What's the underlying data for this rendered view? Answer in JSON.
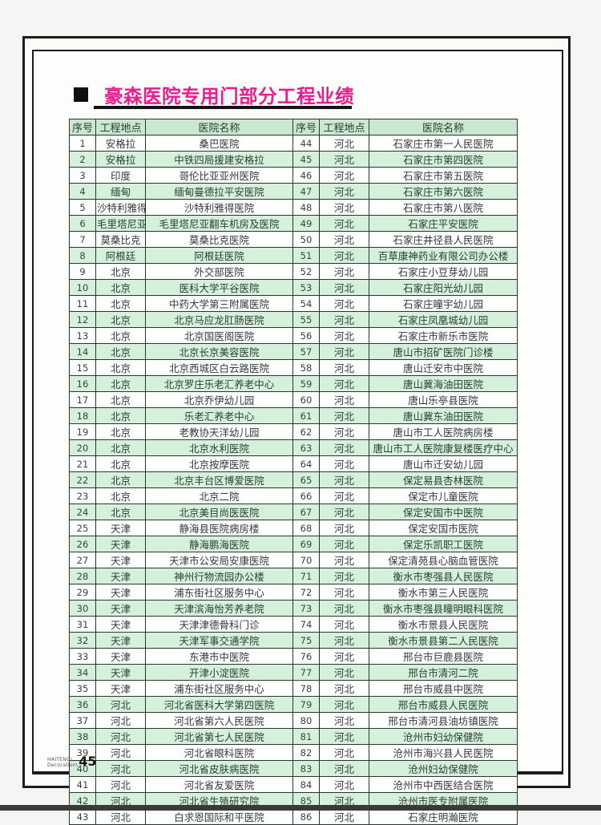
{
  "title": "豪森医院专用门部分工程业绩",
  "footer": {
    "brand_line1": "HAITENG\\",
    "brand_line2": "Decoration\\",
    "page_number": "45"
  },
  "colors": {
    "title_magenta": "#e81e8e",
    "header_green": "#c8e8cf",
    "row_green": "#d5f1dc",
    "row_white": "#fdfffd",
    "frame_black": "#1c1c1c"
  },
  "table": {
    "headers": [
      "序号",
      "工程地点",
      "医院名称",
      "序号",
      "工程地点",
      "医院名称"
    ],
    "left_rows": [
      [
        "1",
        "安格拉",
        "桑巴医院"
      ],
      [
        "2",
        "安格拉",
        "中铁四局援建安格拉"
      ],
      [
        "3",
        "印度",
        "哥伦比亚亚州医院"
      ],
      [
        "4",
        "缅甸",
        "缅甸曼德拉平安医院"
      ],
      [
        "5",
        "沙特利雅得",
        "沙特利雅得医院"
      ],
      [
        "6",
        "毛里塔尼亚",
        "毛里塔尼亚翻车机房及医院"
      ],
      [
        "7",
        "莫桑比克",
        "莫桑比克医院"
      ],
      [
        "8",
        "阿根廷",
        "阿根廷医院"
      ],
      [
        "9",
        "北京",
        "外交部医院"
      ],
      [
        "10",
        "北京",
        "医科大学平谷医院"
      ],
      [
        "11",
        "北京",
        "中药大学第三附属医院"
      ],
      [
        "12",
        "北京",
        "北京马应龙肛肠医院"
      ],
      [
        "13",
        "北京",
        "北京国医阁医院"
      ],
      [
        "14",
        "北京",
        "北京长京美容医院"
      ],
      [
        "15",
        "北京",
        "北京西城区白云路医院"
      ],
      [
        "16",
        "北京",
        "北京罗庄乐老汇养老中心"
      ],
      [
        "17",
        "北京",
        "北京乔伊幼儿园"
      ],
      [
        "18",
        "北京",
        "乐老汇养老中心"
      ],
      [
        "19",
        "北京",
        "老教协天洋幼儿园"
      ],
      [
        "20",
        "北京",
        "北京水利医院"
      ],
      [
        "21",
        "北京",
        "北京按摩医院"
      ],
      [
        "22",
        "北京",
        "北京丰台区博爱医院"
      ],
      [
        "23",
        "北京",
        "北京二院"
      ],
      [
        "24",
        "北京",
        "北京美目尚医医院"
      ],
      [
        "25",
        "天津",
        "静海县医院病房楼"
      ],
      [
        "26",
        "天津",
        "静海鹏海医院"
      ],
      [
        "27",
        "天津",
        "天津市公安局安康医院"
      ],
      [
        "28",
        "天津",
        "神州行物流园办公楼"
      ],
      [
        "29",
        "天津",
        "浦东街社区服务中心"
      ],
      [
        "30",
        "天津",
        "天津滨海怡芳养老院"
      ],
      [
        "31",
        "天津",
        "天津津德骨科门诊"
      ],
      [
        "32",
        "天津",
        "天津军事交通学院"
      ],
      [
        "33",
        "天津",
        "东港市中医院"
      ],
      [
        "34",
        "天津",
        "开津小淀医院"
      ],
      [
        "35",
        "天津",
        "浦东街社区服务中心"
      ],
      [
        "36",
        "河北",
        "河北省医科大学第四医院"
      ],
      [
        "37",
        "河北",
        "河北省第六人民医院"
      ],
      [
        "38",
        "河北",
        "河北省第七人民医院"
      ],
      [
        "39",
        "河北",
        "河北省眼科医院"
      ],
      [
        "40",
        "河北",
        "河北省皮肤病医院"
      ],
      [
        "41",
        "河北",
        "河北省友爱医院"
      ],
      [
        "42",
        "河北",
        "河北省生殖研究院"
      ],
      [
        "43",
        "河北",
        "白求恩国际和平医院"
      ]
    ],
    "right_rows": [
      [
        "44",
        "河北",
        "石家庄市第一人民医院"
      ],
      [
        "45",
        "河北",
        "石家庄市第四医院"
      ],
      [
        "46",
        "河北",
        "石家庄市第五医院"
      ],
      [
        "47",
        "河北",
        "石家庄市第六医院"
      ],
      [
        "48",
        "河北",
        "石家庄市第八医院"
      ],
      [
        "49",
        "河北",
        "石家庄平安医院"
      ],
      [
        "50",
        "河北",
        "石家庄井径县人民医院"
      ],
      [
        "51",
        "河北",
        "百草康神药业有限公司办公楼"
      ],
      [
        "52",
        "河北",
        "石家庄小豆芽幼儿园"
      ],
      [
        "53",
        "河北",
        "石家庄阳光幼儿园"
      ],
      [
        "54",
        "河北",
        "石家庄瞳宇幼儿园"
      ],
      [
        "55",
        "河北",
        "石家庄凤凰城幼儿园"
      ],
      [
        "56",
        "河北",
        "石家庄市新乐市医院"
      ],
      [
        "57",
        "河北",
        "唐山市招矿医院门诊楼"
      ],
      [
        "58",
        "河北",
        "唐山迁安市中医院"
      ],
      [
        "59",
        "河北",
        "唐山冀海油田医院"
      ],
      [
        "60",
        "河北",
        "唐山乐亭县医院"
      ],
      [
        "61",
        "河北",
        "唐山冀东油田医院"
      ],
      [
        "62",
        "河北",
        "唐山市工人医院病房楼"
      ],
      [
        "63",
        "河北",
        "唐山市工人医院康复楼医疗中心"
      ],
      [
        "64",
        "河北",
        "唐山市迁安幼儿园"
      ],
      [
        "65",
        "河北",
        "保定易县杏林医院"
      ],
      [
        "66",
        "河北",
        "保定市儿童医院"
      ],
      [
        "67",
        "河北",
        "保定安国市中医院"
      ],
      [
        "68",
        "河北",
        "保定安国市医院"
      ],
      [
        "69",
        "河北",
        "保定乐凯职工医院"
      ],
      [
        "70",
        "河北",
        "保定清苑县心脑血管医院"
      ],
      [
        "71",
        "河北",
        "衡水市枣强县人民医院"
      ],
      [
        "72",
        "河北",
        "衡水市第三人民医院"
      ],
      [
        "73",
        "河北",
        "衡水市枣强县瞳明眼科医院"
      ],
      [
        "74",
        "河北",
        "衡水市景县人民医院"
      ],
      [
        "75",
        "河北",
        "衡水市景县第二人民医院"
      ],
      [
        "76",
        "河北",
        "邢台市巨鹿县医院"
      ],
      [
        "77",
        "河北",
        "邢台市清河二院"
      ],
      [
        "78",
        "河北",
        "邢台市威县中医院"
      ],
      [
        "79",
        "河北",
        "邢台市威县人民医院"
      ],
      [
        "80",
        "河北",
        "邢台市清河县油坊镇医院"
      ],
      [
        "81",
        "河北",
        "沧州市妇幼保健院"
      ],
      [
        "82",
        "河北",
        "沧州市海兴县人民医院"
      ],
      [
        "83",
        "河北",
        "沧州妇幼保健院"
      ],
      [
        "84",
        "河北",
        "沧州市中西医结合医院"
      ],
      [
        "85",
        "河北",
        "沧州市医专附属医院"
      ],
      [
        "86",
        "河北",
        "石家庄明瀚医院"
      ]
    ]
  }
}
